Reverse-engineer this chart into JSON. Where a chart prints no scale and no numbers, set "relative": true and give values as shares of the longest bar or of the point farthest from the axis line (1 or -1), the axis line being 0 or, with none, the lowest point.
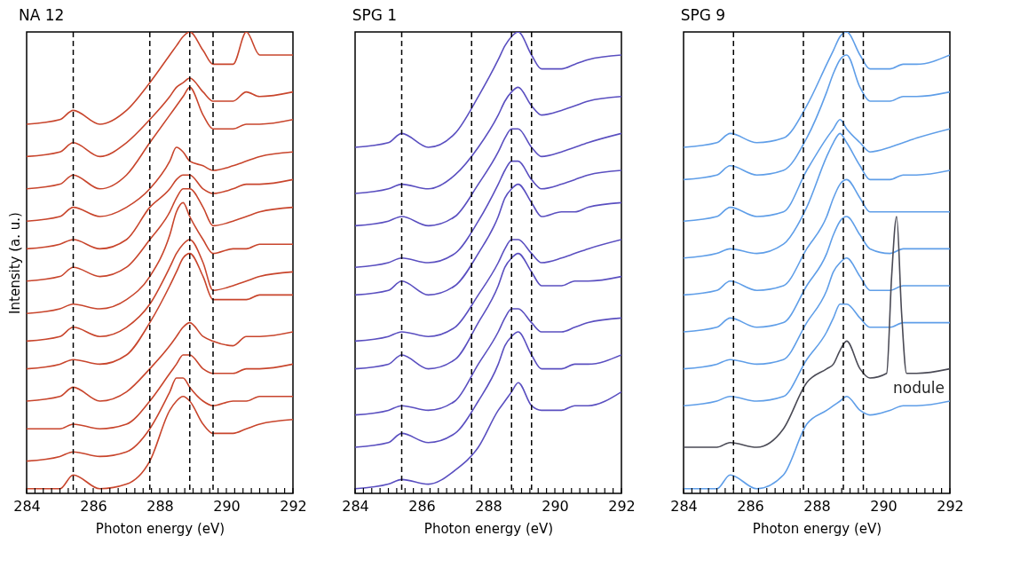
{
  "chart_data": [
    {
      "type": "line",
      "title": "NA 12",
      "xlabel": "Photon energy (eV)",
      "ylabel": "Intensity (a. u.)",
      "relative": true,
      "grid": false,
      "line_style": "solid",
      "xlim": [
        284,
        292
      ],
      "xticks": [
        284,
        {
          "value": 284.25,
          "label": null
        },
        {
          "value": 284.5,
          "label": null
        },
        {
          "value": 284.75,
          "label": null
        },
        {
          "value": 285,
          "label": null
        },
        {
          "value": 285.25,
          "label": null
        },
        {
          "value": 285.5,
          "label": null
        },
        {
          "value": 285.75,
          "label": null
        },
        286,
        {
          "value": 286.25,
          "label": null
        },
        {
          "value": 286.5,
          "label": null
        },
        {
          "value": 286.75,
          "label": null
        },
        {
          "value": 287,
          "label": null
        },
        {
          "value": 287.25,
          "label": null
        },
        {
          "value": 287.5,
          "label": null
        },
        {
          "value": 287.75,
          "label": null
        },
        288,
        {
          "value": 288.25,
          "label": null
        },
        {
          "value": 288.5,
          "label": null
        },
        {
          "value": 288.75,
          "label": null
        },
        {
          "value": 289,
          "label": null
        },
        {
          "value": 289.25,
          "label": null
        },
        {
          "value": 289.5,
          "label": null
        },
        {
          "value": 289.75,
          "label": null
        },
        290,
        {
          "value": 290.25,
          "label": null
        },
        {
          "value": 290.5,
          "label": null
        },
        {
          "value": 290.75,
          "label": null
        },
        {
          "value": 291,
          "label": null
        },
        {
          "value": 291.25,
          "label": null
        },
        {
          "value": 291.5,
          "label": null
        },
        {
          "value": 291.75,
          "label": null
        },
        292
      ],
      "x": [
        284,
        285,
        285.4,
        286.2,
        287,
        287.7,
        288.3,
        288.5,
        288.7,
        288.9,
        289.3,
        289.6,
        290.2,
        290.6,
        291,
        292
      ],
      "series": [
        {
          "color": "#c8452c",
          "values": [
            0.8,
            0.81,
            0.83,
            0.8,
            0.83,
            0.89,
            0.95,
            0.97,
            0.99,
            1.0,
            0.96,
            0.93,
            0.93,
            1.0,
            0.95,
            0.95
          ]
        },
        {
          "color": "#c8452c",
          "values": [
            0.73,
            0.74,
            0.76,
            0.73,
            0.76,
            0.81,
            0.86,
            0.88,
            0.89,
            0.9,
            0.87,
            0.85,
            0.85,
            0.87,
            0.86,
            0.87
          ]
        },
        {
          "color": "#c8452c",
          "values": [
            0.66,
            0.67,
            0.69,
            0.66,
            0.69,
            0.76,
            0.82,
            0.84,
            0.86,
            0.88,
            0.82,
            0.79,
            0.79,
            0.8,
            0.8,
            0.81
          ]
        },
        {
          "color": "#c8452c",
          "values": [
            0.59,
            0.6,
            0.62,
            0.6,
            0.62,
            0.66,
            0.72,
            0.75,
            0.74,
            0.72,
            0.71,
            0.7,
            0.71,
            0.72,
            0.73,
            0.74
          ]
        },
        {
          "color": "#c8452c",
          "values": [
            0.53,
            0.54,
            0.55,
            0.53,
            0.55,
            0.62,
            0.66,
            0.68,
            0.69,
            0.69,
            0.66,
            0.65,
            0.66,
            0.67,
            0.67,
            0.68
          ]
        },
        {
          "color": "#c8452c",
          "values": [
            0.46,
            0.47,
            0.49,
            0.47,
            0.49,
            0.55,
            0.61,
            0.64,
            0.66,
            0.66,
            0.62,
            0.58,
            0.59,
            0.6,
            0.61,
            0.62
          ]
        },
        {
          "color": "#c8452c",
          "values": [
            0.39,
            0.4,
            0.41,
            0.4,
            0.42,
            0.47,
            0.56,
            0.61,
            0.63,
            0.6,
            0.55,
            0.52,
            0.53,
            0.53,
            0.54,
            0.54
          ]
        },
        {
          "color": "#c8452c",
          "values": [
            0.33,
            0.34,
            0.36,
            0.34,
            0.36,
            0.41,
            0.49,
            0.52,
            0.54,
            0.55,
            0.5,
            0.44,
            0.45,
            0.46,
            0.47,
            0.48
          ]
        },
        {
          "color": "#c8452c",
          "values": [
            0.27,
            0.28,
            0.29,
            0.28,
            0.3,
            0.37,
            0.45,
            0.48,
            0.51,
            0.52,
            0.47,
            0.42,
            0.42,
            0.42,
            0.43,
            0.43
          ]
        },
        {
          "color": "#c8452c",
          "values": [
            0.2,
            0.21,
            0.23,
            0.2,
            0.22,
            0.27,
            0.32,
            0.34,
            0.36,
            0.37,
            0.34,
            0.33,
            0.32,
            0.34,
            0.34,
            0.35
          ]
        },
        {
          "color": "#c8452c",
          "values": [
            0.14,
            0.14,
            0.15,
            0.14,
            0.15,
            0.2,
            0.26,
            0.28,
            0.3,
            0.3,
            0.27,
            0.26,
            0.26,
            0.27,
            0.27,
            0.28
          ]
        },
        {
          "color": "#c8452c",
          "values": [
            0.07,
            0.08,
            0.09,
            0.08,
            0.09,
            0.14,
            0.22,
            0.25,
            0.25,
            0.23,
            0.2,
            0.19,
            0.2,
            0.2,
            0.21,
            0.21
          ]
        },
        {
          "color": "#c8452c",
          "values": [
            0.01,
            0.01,
            0.04,
            0.01,
            0.02,
            0.07,
            0.18,
            0.2,
            0.21,
            0.2,
            0.15,
            0.13,
            0.13,
            0.14,
            0.15,
            0.16
          ]
        }
      ],
      "ref_lines": [
        {
          "axis": "x",
          "value": 285.4,
          "color": "#000000",
          "line_style": "dashed"
        },
        {
          "axis": "x",
          "value": 287.7,
          "color": "#000000",
          "line_style": "dashed"
        },
        {
          "axis": "x",
          "value": 288.9,
          "color": "#000000",
          "line_style": "dashed"
        },
        {
          "axis": "x",
          "value": 289.6,
          "color": "#000000",
          "line_style": "dashed"
        }
      ]
    },
    {
      "type": "line",
      "title": "SPG 1",
      "xlabel": "Photon energy (eV)",
      "relative": true,
      "grid": false,
      "line_style": "solid",
      "xlim": [
        284,
        292
      ],
      "xticks": [
        284,
        {
          "value": 284.25,
          "label": null
        },
        {
          "value": 284.5,
          "label": null
        },
        {
          "value": 284.75,
          "label": null
        },
        {
          "value": 285,
          "label": null
        },
        {
          "value": 285.25,
          "label": null
        },
        {
          "value": 285.5,
          "label": null
        },
        {
          "value": 285.75,
          "label": null
        },
        286,
        {
          "value": 286.25,
          "label": null
        },
        {
          "value": 286.5,
          "label": null
        },
        {
          "value": 286.75,
          "label": null
        },
        {
          "value": 287,
          "label": null
        },
        {
          "value": 287.25,
          "label": null
        },
        {
          "value": 287.5,
          "label": null
        },
        {
          "value": 287.75,
          "label": null
        },
        288,
        {
          "value": 288.25,
          "label": null
        },
        {
          "value": 288.5,
          "label": null
        },
        {
          "value": 288.75,
          "label": null
        },
        {
          "value": 289,
          "label": null
        },
        {
          "value": 289.25,
          "label": null
        },
        {
          "value": 289.5,
          "label": null
        },
        {
          "value": 289.75,
          "label": null
        },
        290,
        {
          "value": 290.25,
          "label": null
        },
        {
          "value": 290.5,
          "label": null
        },
        {
          "value": 290.75,
          "label": null
        },
        {
          "value": 291,
          "label": null
        },
        {
          "value": 291.25,
          "label": null
        },
        {
          "value": 291.5,
          "label": null
        },
        {
          "value": 291.75,
          "label": null
        },
        292
      ],
      "x": [
        284,
        285,
        285.4,
        286.2,
        287,
        287.7,
        288.3,
        288.5,
        288.7,
        288.9,
        289.3,
        289.6,
        290.2,
        290.6,
        291,
        292
      ],
      "series": [
        {
          "color": "#5a4fc0",
          "values": [
            0.75,
            0.76,
            0.78,
            0.75,
            0.78,
            0.86,
            0.94,
            0.97,
            0.99,
            1.0,
            0.95,
            0.92,
            0.92,
            0.93,
            0.94,
            0.95
          ]
        },
        {
          "color": "#5a4fc0",
          "values": [
            0.65,
            0.66,
            0.67,
            0.66,
            0.69,
            0.75,
            0.82,
            0.85,
            0.87,
            0.88,
            0.84,
            0.82,
            0.83,
            0.84,
            0.85,
            0.86
          ]
        },
        {
          "color": "#5a4fc0",
          "values": [
            0.58,
            0.59,
            0.6,
            0.58,
            0.6,
            0.67,
            0.74,
            0.77,
            0.79,
            0.79,
            0.75,
            0.73,
            0.74,
            0.75,
            0.76,
            0.78
          ]
        },
        {
          "color": "#5a4fc0",
          "values": [
            0.49,
            0.5,
            0.51,
            0.5,
            0.52,
            0.59,
            0.67,
            0.7,
            0.72,
            0.72,
            0.68,
            0.66,
            0.67,
            0.68,
            0.69,
            0.7
          ]
        },
        {
          "color": "#5a4fc0",
          "values": [
            0.43,
            0.44,
            0.46,
            0.43,
            0.45,
            0.52,
            0.6,
            0.64,
            0.66,
            0.67,
            0.63,
            0.6,
            0.61,
            0.61,
            0.62,
            0.63
          ]
        },
        {
          "color": "#5a4fc0",
          "values": [
            0.33,
            0.34,
            0.35,
            0.34,
            0.36,
            0.43,
            0.5,
            0.53,
            0.55,
            0.55,
            0.52,
            0.5,
            0.51,
            0.52,
            0.53,
            0.55
          ]
        },
        {
          "color": "#5a4fc0",
          "values": [
            0.27,
            0.28,
            0.3,
            0.27,
            0.29,
            0.37,
            0.45,
            0.49,
            0.51,
            0.52,
            0.48,
            0.45,
            0.45,
            0.46,
            0.46,
            0.47
          ]
        },
        {
          "color": "#5a4fc0",
          "values": [
            0.17,
            0.18,
            0.19,
            0.18,
            0.2,
            0.28,
            0.35,
            0.38,
            0.4,
            0.4,
            0.37,
            0.35,
            0.35,
            0.36,
            0.37,
            0.38
          ]
        },
        {
          "color": "#5a4fc0",
          "values": [
            0.1,
            0.11,
            0.13,
            0.11,
            0.13,
            0.2,
            0.28,
            0.32,
            0.34,
            0.35,
            0.3,
            0.27,
            0.27,
            0.28,
            0.28,
            0.3
          ]
        },
        {
          "color": "#5a4fc0",
          "values": [
            0.01,
            0.02,
            0.03,
            0.02,
            0.05,
            0.1,
            0.18,
            0.2,
            0.22,
            0.24,
            0.19,
            0.18,
            0.18,
            0.19,
            0.19,
            0.22
          ]
        }
      ],
      "ref_lines": [
        {
          "axis": "x",
          "value": 285.4,
          "color": "#000000",
          "line_style": "dashed"
        },
        {
          "axis": "x",
          "value": 287.5,
          "color": "#000000",
          "line_style": "dashed"
        },
        {
          "axis": "x",
          "value": 288.7,
          "color": "#000000",
          "line_style": "dashed"
        },
        {
          "axis": "x",
          "value": 289.3,
          "color": "#000000",
          "line_style": "dashed"
        }
      ]
    },
    {
      "type": "line",
      "title": "SPG 9",
      "xlabel": "Photon energy (eV)",
      "relative": true,
      "grid": false,
      "line_style": "solid",
      "xlim": [
        284,
        292
      ],
      "xticks": [
        284,
        {
          "value": 284.25,
          "label": null
        },
        {
          "value": 284.5,
          "label": null
        },
        {
          "value": 284.75,
          "label": null
        },
        {
          "value": 285,
          "label": null
        },
        {
          "value": 285.25,
          "label": null
        },
        {
          "value": 285.5,
          "label": null
        },
        {
          "value": 285.75,
          "label": null
        },
        286,
        {
          "value": 286.25,
          "label": null
        },
        {
          "value": 286.5,
          "label": null
        },
        {
          "value": 286.75,
          "label": null
        },
        {
          "value": 287,
          "label": null
        },
        {
          "value": 287.25,
          "label": null
        },
        {
          "value": 287.5,
          "label": null
        },
        {
          "value": 287.75,
          "label": null
        },
        288,
        {
          "value": 288.25,
          "label": null
        },
        {
          "value": 288.5,
          "label": null
        },
        {
          "value": 288.75,
          "label": null
        },
        {
          "value": 289,
          "label": null
        },
        {
          "value": 289.25,
          "label": null
        },
        {
          "value": 289.5,
          "label": null
        },
        {
          "value": 289.75,
          "label": null
        },
        290,
        {
          "value": 290.25,
          "label": null
        },
        {
          "value": 290.5,
          "label": null
        },
        {
          "value": 290.75,
          "label": null
        },
        {
          "value": 291,
          "label": null
        },
        {
          "value": 291.25,
          "label": null
        },
        {
          "value": 291.5,
          "label": null
        },
        {
          "value": 291.75,
          "label": null
        },
        292
      ],
      "x": [
        284,
        285,
        285.4,
        286.2,
        287,
        287.7,
        288.3,
        288.5,
        288.7,
        288.9,
        289.3,
        289.6,
        290.2,
        290.6,
        291,
        292
      ],
      "series": [
        {
          "color": "#5f9ee8",
          "values": [
            0.75,
            0.76,
            0.78,
            0.76,
            0.77,
            0.84,
            0.93,
            0.96,
            0.99,
            1.0,
            0.95,
            0.92,
            0.92,
            0.93,
            0.93,
            0.95
          ]
        },
        {
          "color": "#5f9ee8",
          "values": [
            0.68,
            0.69,
            0.71,
            0.69,
            0.7,
            0.77,
            0.87,
            0.91,
            0.94,
            0.95,
            0.88,
            0.85,
            0.85,
            0.86,
            0.86,
            0.87
          ]
        },
        {
          "color": "#5f9ee8",
          "values": [
            0.59,
            0.6,
            0.62,
            0.6,
            0.61,
            0.7,
            0.77,
            0.79,
            0.81,
            0.79,
            0.76,
            0.74,
            0.75,
            0.76,
            0.77,
            0.79
          ]
        },
        {
          "color": "#5f9ee8",
          "values": [
            0.51,
            0.52,
            0.53,
            0.52,
            0.54,
            0.62,
            0.73,
            0.76,
            0.78,
            0.76,
            0.71,
            0.68,
            0.68,
            0.69,
            0.69,
            0.7
          ]
        },
        {
          "color": "#5f9ee8",
          "values": [
            0.43,
            0.44,
            0.46,
            0.44,
            0.45,
            0.53,
            0.6,
            0.64,
            0.67,
            0.68,
            0.64,
            0.61,
            0.61,
            0.61,
            0.61,
            0.61
          ]
        },
        {
          "color": "#5f9ee8",
          "values": [
            0.35,
            0.36,
            0.38,
            0.36,
            0.37,
            0.45,
            0.52,
            0.56,
            0.59,
            0.6,
            0.56,
            0.53,
            0.52,
            0.53,
            0.53,
            0.53
          ]
        },
        {
          "color": "#5f9ee8",
          "values": [
            0.27,
            0.28,
            0.29,
            0.28,
            0.29,
            0.37,
            0.44,
            0.48,
            0.5,
            0.51,
            0.47,
            0.44,
            0.44,
            0.45,
            0.45,
            0.45
          ]
        },
        {
          "color": "#5f9ee8",
          "values": [
            0.19,
            0.2,
            0.21,
            0.2,
            0.21,
            0.29,
            0.35,
            0.38,
            0.41,
            0.41,
            0.38,
            0.36,
            0.36,
            0.37,
            0.37,
            0.37
          ]
        },
        {
          "name": "nodule",
          "color": "#4a4a55",
          "x": [
            284,
            285,
            285.4,
            286.2,
            287,
            287.7,
            288.3,
            288.5,
            288.7,
            288.9,
            289.3,
            289.6,
            290.1,
            290.25,
            290.4,
            290.55,
            290.7,
            291,
            292
          ],
          "values": [
            0.1,
            0.1,
            0.11,
            0.1,
            0.14,
            0.24,
            0.27,
            0.28,
            0.31,
            0.33,
            0.27,
            0.25,
            0.26,
            0.47,
            0.6,
            0.39,
            0.26,
            0.26,
            0.27
          ]
        },
        {
          "color": "#5f9ee8",
          "values": [
            0.01,
            0.01,
            0.04,
            0.01,
            0.04,
            0.15,
            0.18,
            0.19,
            0.2,
            0.21,
            0.18,
            0.17,
            0.18,
            0.19,
            0.19,
            0.2
          ]
        }
      ],
      "ref_lines": [
        {
          "axis": "x",
          "value": 285.5,
          "color": "#000000",
          "line_style": "dashed"
        },
        {
          "axis": "x",
          "value": 287.6,
          "color": "#000000",
          "line_style": "dashed"
        },
        {
          "axis": "x",
          "value": 288.8,
          "color": "#000000",
          "line_style": "dashed"
        },
        {
          "axis": "x",
          "value": 289.4,
          "color": "#000000",
          "line_style": "dashed"
        }
      ]
    }
  ]
}
